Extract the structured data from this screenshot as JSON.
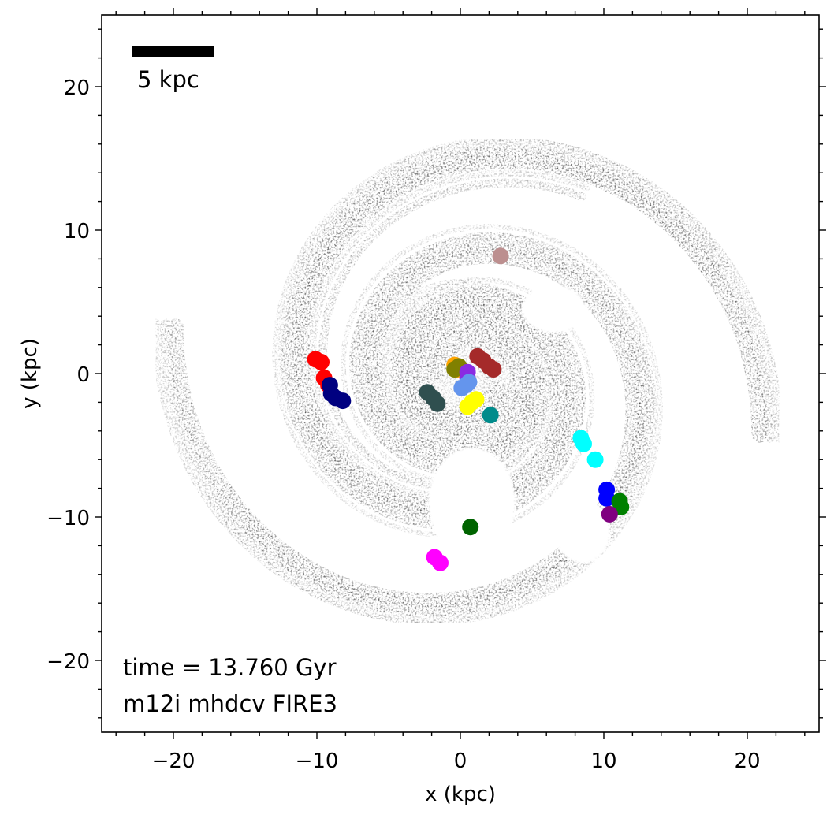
{
  "chart_data": {
    "type": "scatter",
    "title": "",
    "xlabel": "x (kpc)",
    "ylabel": "y (kpc)",
    "xlim": [
      -25,
      25
    ],
    "ylim": [
      -25,
      25
    ],
    "x_ticks": [
      -20,
      -10,
      0,
      10,
      20
    ],
    "y_ticks": [
      -20,
      -10,
      0,
      10,
      20
    ],
    "x_tick_labels": [
      "−20",
      "−10",
      "0",
      "10",
      "20"
    ],
    "y_tick_labels": [
      "−20",
      "−10",
      "0",
      "10",
      "20"
    ],
    "grid": false,
    "legend": "none",
    "scale_bar": {
      "length_kpc": 5,
      "label": "5 kpc",
      "x_start": -22.7,
      "y": 22.5
    },
    "annotations": [
      {
        "text": "time = 13.760 Gyr",
        "x": -23.5,
        "y": -20.5
      },
      {
        "text": "m12i mhdcv FIRE3",
        "x": -23.5,
        "y": -23.3
      }
    ],
    "background": "grayscale gas projection with spiral arms",
    "groups": [
      {
        "color": "#ff0000",
        "points": [
          [
            -10.1,
            1.0
          ],
          [
            -9.7,
            0.8
          ],
          [
            -9.5,
            -0.3
          ],
          [
            -9.2,
            -0.8
          ]
        ]
      },
      {
        "color": "#000080",
        "points": [
          [
            -9.1,
            -0.8
          ],
          [
            -9.0,
            -1.4
          ],
          [
            -8.7,
            -1.7
          ],
          [
            -8.2,
            -1.9
          ]
        ]
      },
      {
        "color": "#2f4f4f",
        "points": [
          [
            -2.3,
            -1.3
          ],
          [
            -1.9,
            -1.7
          ],
          [
            -1.6,
            -2.1
          ]
        ]
      },
      {
        "color": "#ffa500",
        "points": [
          [
            -0.4,
            0.6
          ],
          [
            -0.2,
            0.3
          ]
        ]
      },
      {
        "color": "#808000",
        "points": [
          [
            -0.4,
            0.3
          ],
          [
            -0.1,
            0.5
          ]
        ]
      },
      {
        "color": "#a52a2a",
        "points": [
          [
            1.2,
            1.2
          ],
          [
            1.6,
            0.9
          ],
          [
            2.0,
            0.5
          ],
          [
            2.3,
            0.3
          ]
        ]
      },
      {
        "color": "#8a2be2",
        "points": [
          [
            0.5,
            0.1
          ],
          [
            0.5,
            -0.3
          ]
        ]
      },
      {
        "color": "#6495ed",
        "points": [
          [
            0.1,
            -1.0
          ],
          [
            0.4,
            -0.8
          ],
          [
            0.6,
            -0.6
          ]
        ]
      },
      {
        "color": "#ffff00",
        "points": [
          [
            0.5,
            -2.3
          ],
          [
            0.8,
            -2.0
          ],
          [
            1.1,
            -1.8
          ]
        ]
      },
      {
        "color": "#008b8b",
        "points": [
          [
            2.1,
            -2.9
          ]
        ]
      },
      {
        "color": "#bc8f8f",
        "points": [
          [
            2.8,
            8.2
          ]
        ]
      },
      {
        "color": "#00ffff",
        "points": [
          [
            8.4,
            -4.5
          ],
          [
            8.6,
            -4.9
          ],
          [
            9.4,
            -6.0
          ]
        ]
      },
      {
        "color": "#0000ff",
        "points": [
          [
            10.2,
            -8.1
          ],
          [
            10.2,
            -8.7
          ]
        ]
      },
      {
        "color": "#008000",
        "points": [
          [
            11.1,
            -8.9
          ],
          [
            11.2,
            -9.3
          ]
        ]
      },
      {
        "color": "#800080",
        "points": [
          [
            10.4,
            -9.8
          ]
        ]
      },
      {
        "color": "#006400",
        "points": [
          [
            0.7,
            -10.7
          ]
        ]
      },
      {
        "color": "#ff00ff",
        "points": [
          [
            -1.8,
            -12.8
          ],
          [
            -1.4,
            -13.2
          ]
        ]
      }
    ]
  }
}
